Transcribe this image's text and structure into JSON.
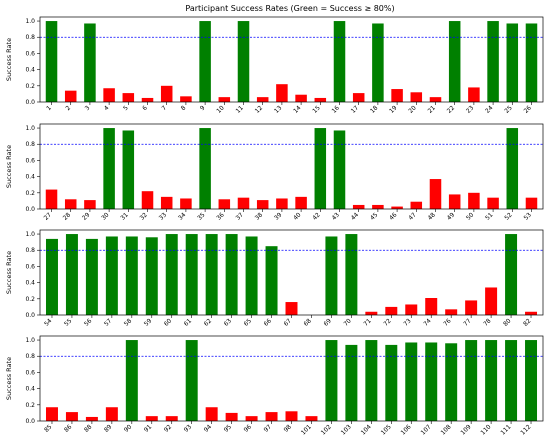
{
  "chart_data": {
    "type": "bar",
    "title": "Participant Success Rates (Green = Success ≥ 80%)",
    "ylabel": "Success Rate",
    "threshold": 0.8,
    "threshold_color": "#0000ff",
    "success_color": "#008000",
    "fail_color": "#ff0000",
    "ylim": [
      0,
      1.05
    ],
    "yticks": [
      "0.0",
      "0.2",
      "0.4",
      "0.6",
      "0.8",
      "1.0"
    ],
    "grid": false,
    "panels": [
      {
        "categories": [
          "1",
          "2",
          "3",
          "4",
          "5",
          "6",
          "7",
          "8",
          "9",
          "10",
          "11",
          "12",
          "13",
          "14",
          "15",
          "16",
          "17",
          "18",
          "19",
          "20",
          "21",
          "22",
          "23",
          "24",
          "25",
          "26"
        ],
        "values": [
          1.0,
          0.14,
          0.97,
          0.17,
          0.11,
          0.05,
          0.2,
          0.07,
          1.0,
          0.06,
          1.0,
          0.06,
          0.22,
          0.09,
          0.05,
          1.0,
          0.11,
          0.97,
          0.16,
          0.12,
          0.06,
          1.0,
          0.18,
          1.0,
          0.97,
          0.97
        ]
      },
      {
        "categories": [
          "27",
          "28",
          "29",
          "30",
          "31",
          "32",
          "33",
          "34",
          "35",
          "36",
          "37",
          "38",
          "39",
          "40",
          "42",
          "43",
          "44",
          "45",
          "46",
          "47",
          "48",
          "49",
          "50",
          "51",
          "52",
          "53"
        ],
        "values": [
          0.24,
          0.12,
          0.11,
          1.0,
          0.97,
          0.22,
          0.15,
          0.13,
          1.0,
          0.12,
          0.14,
          0.11,
          0.13,
          0.15,
          1.0,
          0.97,
          0.05,
          0.05,
          0.03,
          0.09,
          0.37,
          0.18,
          0.2,
          0.14,
          1.0,
          0.14
        ]
      },
      {
        "categories": [
          "54",
          "55",
          "56",
          "57",
          "58",
          "59",
          "60",
          "61",
          "62",
          "63",
          "65",
          "66",
          "67",
          "68",
          "69",
          "70",
          "71",
          "72",
          "73",
          "74",
          "76",
          "77",
          "78",
          "80",
          "82"
        ],
        "values": [
          0.94,
          1.0,
          0.94,
          0.97,
          0.97,
          0.96,
          1.0,
          1.0,
          1.0,
          1.0,
          0.97,
          0.85,
          0.16,
          0.0,
          0.97,
          1.0,
          0.04,
          0.1,
          0.13,
          0.21,
          0.07,
          0.18,
          0.34,
          1.0,
          0.04
        ]
      },
      {
        "categories": [
          "85",
          "86",
          "88",
          "89",
          "90",
          "91",
          "92",
          "93",
          "94",
          "95",
          "96",
          "97",
          "98",
          "101",
          "102",
          "103",
          "104",
          "105",
          "106",
          "107",
          "108",
          "109",
          "110",
          "111",
          "112"
        ],
        "values": [
          0.17,
          0.11,
          0.05,
          0.17,
          1.0,
          0.06,
          0.06,
          1.0,
          0.17,
          0.1,
          0.06,
          0.11,
          0.12,
          0.06,
          1.0,
          0.94,
          1.0,
          0.94,
          0.97,
          0.97,
          0.96,
          1.0,
          1.0,
          1.0,
          1.0
        ]
      }
    ]
  }
}
